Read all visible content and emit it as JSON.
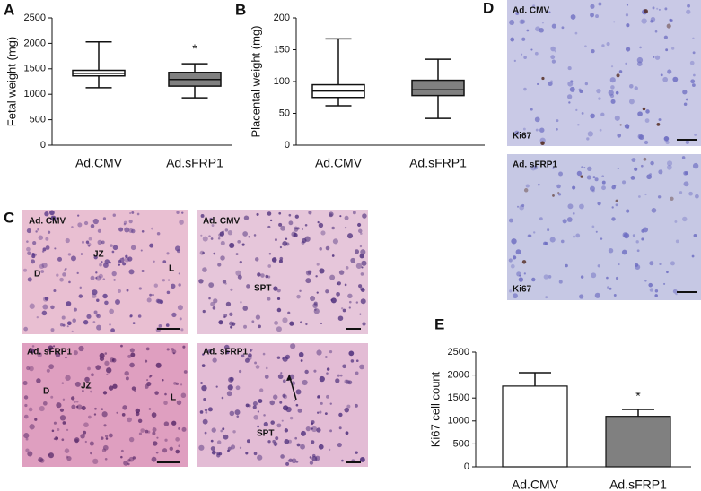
{
  "chart_data": [
    {
      "type": "box",
      "panel": "A",
      "ylabel": "Fetal weight (mg)",
      "categories": [
        "Ad.CMV",
        "Ad.sFRP1"
      ],
      "boxes": [
        {
          "min": 1130,
          "q1": 1360,
          "median": 1410,
          "q3": 1470,
          "max": 2030,
          "color": "#ffffff"
        },
        {
          "min": 930,
          "q1": 1160,
          "median": 1290,
          "q3": 1430,
          "max": 1600,
          "color": "#808080"
        }
      ],
      "annotation": "*",
      "ylim": [
        0,
        2500
      ],
      "yticks": [
        0,
        500,
        1000,
        1500,
        2000,
        2500
      ]
    },
    {
      "type": "box",
      "panel": "B",
      "ylabel": "Placental weight (mg)",
      "categories": [
        "Ad.CMV",
        "Ad.sFRP1"
      ],
      "boxes": [
        {
          "min": 62,
          "q1": 75,
          "median": 85,
          "q3": 95,
          "max": 167,
          "color": "#ffffff"
        },
        {
          "min": 42,
          "q1": 78,
          "median": 87,
          "q3": 102,
          "max": 135,
          "color": "#808080"
        }
      ],
      "ylim": [
        0,
        200
      ],
      "yticks": [
        0,
        50,
        100,
        150,
        200
      ]
    },
    {
      "type": "bar",
      "panel": "E",
      "ylabel": "Ki67 cell count",
      "categories": [
        "Ad.CMV",
        "Ad.sFRP1"
      ],
      "values": [
        1760,
        1100
      ],
      "errors": [
        290,
        150
      ],
      "colors": [
        "#ffffff",
        "#808080"
      ],
      "annotation": "*",
      "ylim": [
        0,
        2500
      ],
      "yticks": [
        0,
        500,
        1000,
        1500,
        2000,
        2500
      ]
    }
  ],
  "panel_c": {
    "label": "C",
    "tiles": [
      {
        "title": "Ad. CMV",
        "marks": [
          "D",
          "JZ",
          "L"
        ]
      },
      {
        "title": "Ad. CMV",
        "marks": [
          "SPT"
        ]
      },
      {
        "title": "Ad. sFRP1",
        "marks": [
          "D",
          "JZ",
          "L"
        ]
      },
      {
        "title": "Ad. sFRP1",
        "marks": [
          "SPT"
        ]
      }
    ]
  },
  "panel_d": {
    "label": "D",
    "tiles": [
      {
        "title": "Ad. CMV",
        "stain": "Ki67"
      },
      {
        "title": "Ad. sFRP1",
        "stain": "Ki67"
      }
    ]
  }
}
